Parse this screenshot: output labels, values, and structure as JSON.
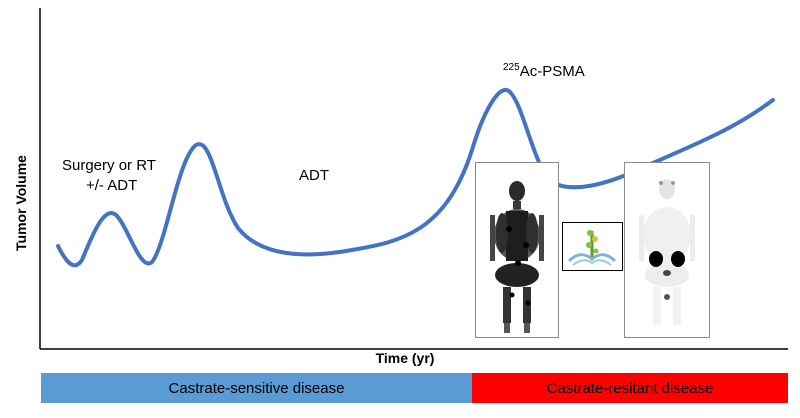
{
  "axes": {
    "y_label": "Tumor Volume",
    "x_label": "Time (yr)"
  },
  "annotations": {
    "surgery_line1": "Surgery or RT",
    "surgery_line2": "+/- ADT",
    "adt": "ADT",
    "psma_superscript": "225",
    "psma_label": "Ac-PSMA"
  },
  "phases": [
    {
      "label": "Castrate-sensitive disease",
      "color": "#5b9bd5"
    },
    {
      "label": "Castrate-resitant disease",
      "color": "#ff0000"
    }
  ],
  "curve_color": "#4472c4"
}
